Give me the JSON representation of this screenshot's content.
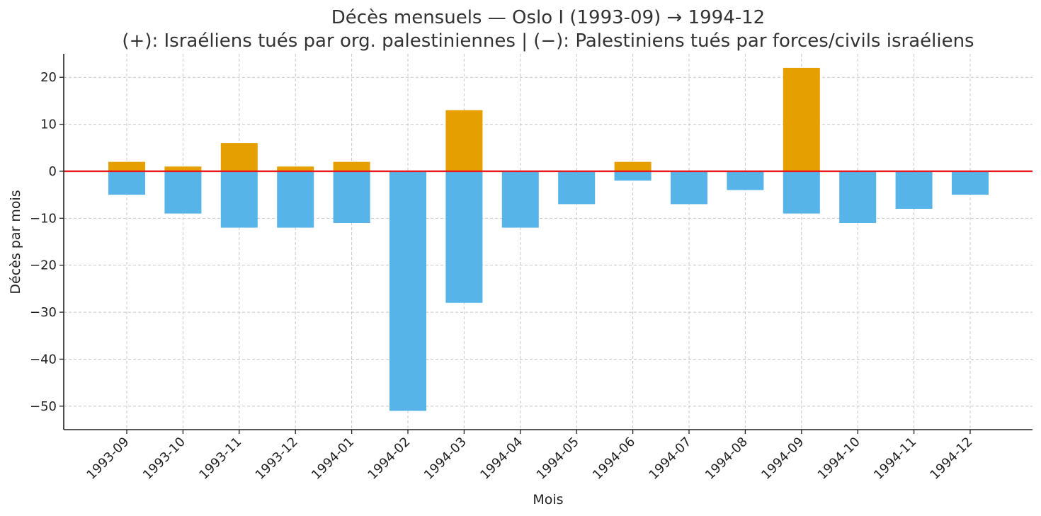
{
  "chart_data": {
    "type": "bar",
    "title": "Décès mensuels — Oslo I (1993-09) → 1994-12",
    "subtitle": "(+): Israéliens tués par org. palestiniennes | (−): Palestiniens tués par forces/civils israéliens",
    "xlabel": "Mois",
    "ylabel": "Décès par mois",
    "ylim": [
      -55,
      25
    ],
    "yticks": [
      20,
      10,
      0,
      -10,
      -20,
      -30,
      -40,
      -50
    ],
    "ytick_labels": [
      "20",
      "10",
      "0",
      "−10",
      "−20",
      "−30",
      "−40",
      "−50"
    ],
    "grid": true,
    "categories": [
      "1993-09",
      "1993-10",
      "1993-11",
      "1993-12",
      "1994-01",
      "1994-02",
      "1994-03",
      "1994-04",
      "1994-05",
      "1994-06",
      "1994-07",
      "1994-08",
      "1994-09",
      "1994-10",
      "1994-11",
      "1994-12"
    ],
    "series": [
      {
        "values": [
          2,
          1,
          6,
          1,
          2,
          0,
          13,
          0,
          0,
          2,
          0,
          0,
          22,
          0,
          0,
          0
        ],
        "color": "#E69F00"
      },
      {
        "values": [
          -5,
          -9,
          -12,
          -12,
          -11,
          -51,
          -28,
          -12,
          -7,
          -2,
          -7,
          -4,
          -9,
          -11,
          -8,
          -5
        ],
        "color": "#56B4E9"
      }
    ],
    "zero_line_color": "#E41A1C"
  }
}
